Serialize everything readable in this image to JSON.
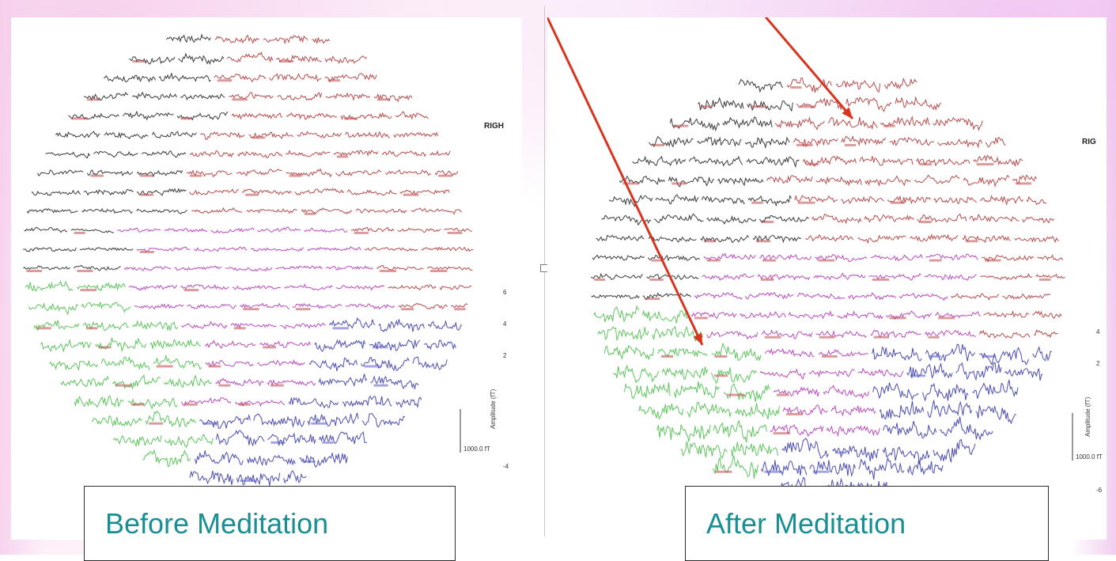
{
  "captions": {
    "before": "Before Meditation",
    "after": "After Meditation"
  },
  "before_plot": {
    "side_label": "RIGH",
    "y_ticks": [
      "6",
      "4",
      "2",
      "-4"
    ],
    "scale_label": "1000.0 fT",
    "axis_title": "Amplitude (fT)"
  },
  "after_plot": {
    "side_label": "RIG",
    "y_ticks": [
      "4",
      "2",
      "-6"
    ],
    "scale_label": "1000.0 fT",
    "axis_title": "Amplitude (fT)"
  },
  "trace_colors": {
    "black": "#262626",
    "red": "#b03a3a",
    "magenta": "#b23ab8",
    "green": "#4cbf4c",
    "blue": "#3a3aa8",
    "arrow": "#d8341e",
    "caption": "#1a8f93"
  }
}
